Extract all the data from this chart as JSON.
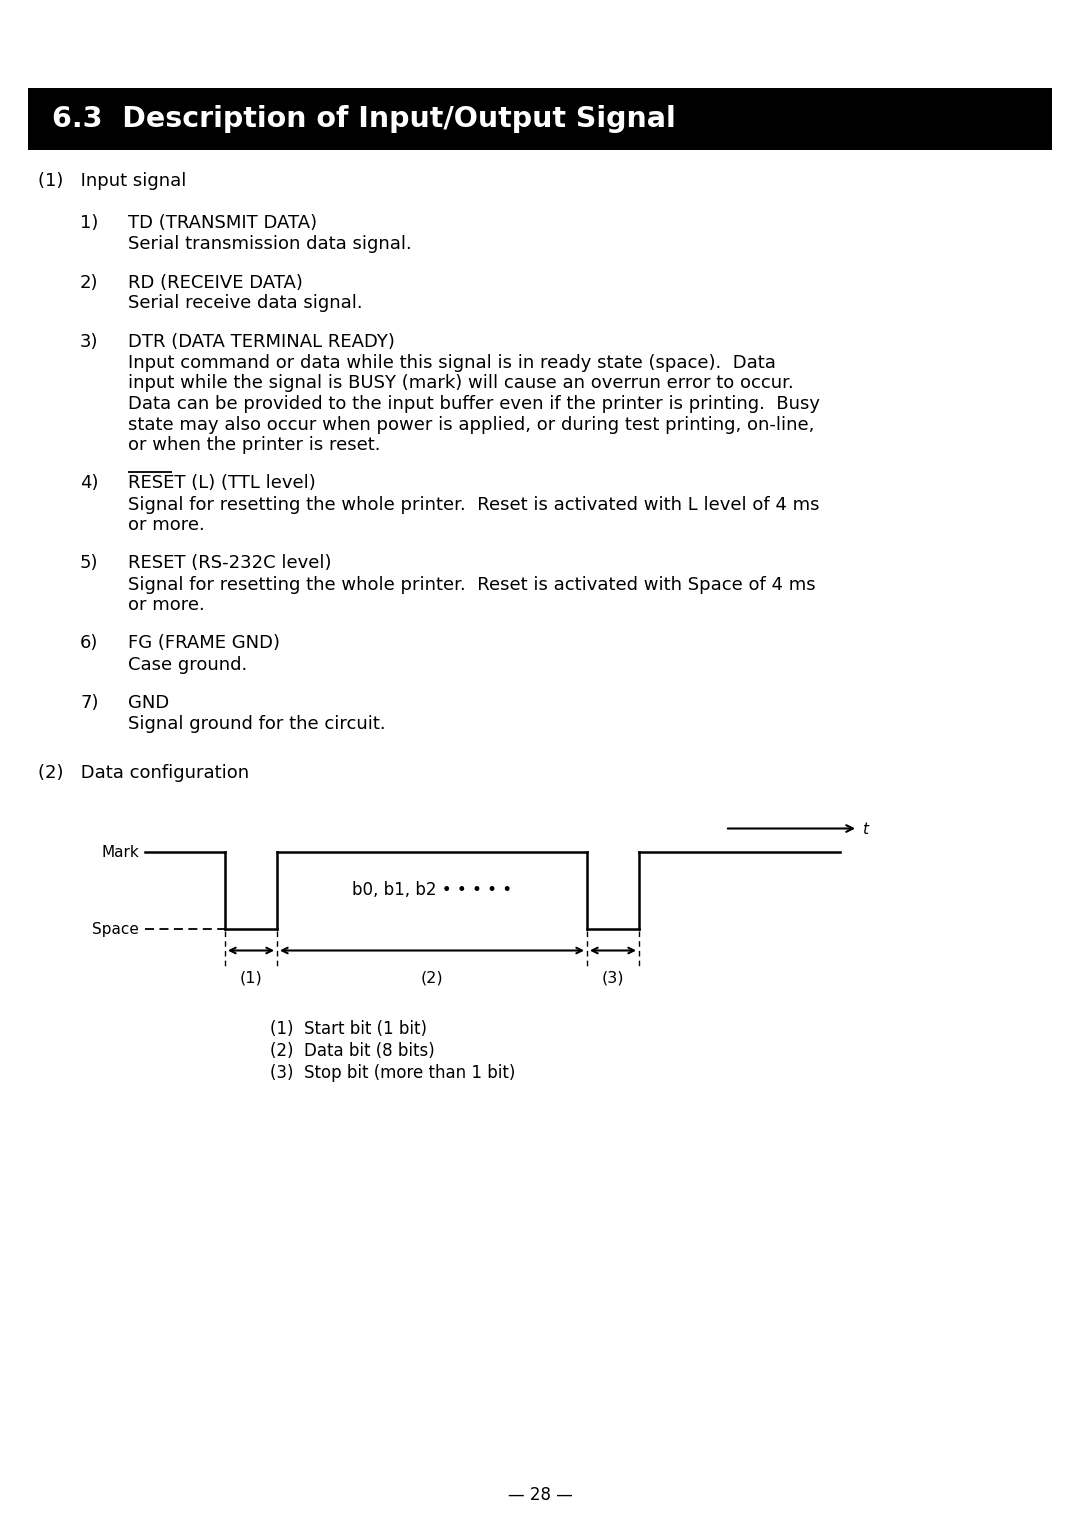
{
  "title": "6.3  Description of Input/Output Signal",
  "title_bg": "#000000",
  "title_fg": "#ffffff",
  "page_bg": "#ffffff",
  "page_number": "— 28 —",
  "section1_header": "(1)   Input signal",
  "items": [
    {
      "num": "1)",
      "head": "TD (TRANSMIT DATA)",
      "body": [
        "Serial transmission data signal."
      ]
    },
    {
      "num": "2)",
      "head": "RD (RECEIVE DATA)",
      "body": [
        "Serial receive data signal."
      ]
    },
    {
      "num": "3)",
      "head": "DTR (DATA TERMINAL READY)",
      "body": [
        "Input command or data while this signal is in ready state (space).  Data",
        "input while the signal is BUSY (mark) will cause an overrun error to occur.",
        "Data can be provided to the input buffer even if the printer is printing.  Busy",
        "state may also occur when power is applied, or during test printing, on-line,",
        "or when the printer is reset."
      ]
    },
    {
      "num": "4)",
      "head": "RESET (L) (TTL level)",
      "head_overline": true,
      "body": [
        "Signal for resetting the whole printer.  Reset is activated with L level of 4 ms",
        "or more."
      ]
    },
    {
      "num": "5)",
      "head": "RESET (RS-232C level)",
      "body": [
        "Signal for resetting the whole printer.  Reset is activated with Space of 4 ms",
        "or more."
      ]
    },
    {
      "num": "6)",
      "head": "FG (FRAME GND)",
      "body": [
        "Case ground."
      ]
    },
    {
      "num": "7)",
      "head": "GND",
      "body": [
        "Signal ground for the circuit."
      ]
    }
  ],
  "section2_header": "(2)   Data configuration",
  "diagram_data_label": "b0, b1, b2 • • • • •",
  "legend": [
    "(1)  Start bit (1 bit)",
    "(2)  Data bit (8 bits)",
    "(3)  Stop bit (more than 1 bit)"
  ]
}
